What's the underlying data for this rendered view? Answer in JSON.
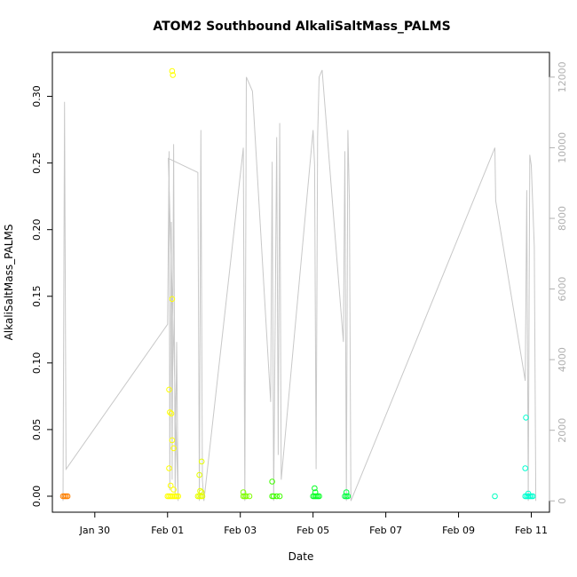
{
  "chart_data": {
    "type": "scatter",
    "title": "ATOM2 Southbound AlkaliSaltMass_PALMS",
    "xlabel": "Date",
    "ylabel": "AlkaliSaltMass_PALMS",
    "ylim": [
      -0.012,
      0.333
    ],
    "y_ticks": [
      0.0,
      0.05,
      0.1,
      0.15,
      0.2,
      0.25,
      0.3
    ],
    "y_tick_labels": [
      "0.00",
      "0.05",
      "0.10",
      "0.15",
      "0.20",
      "0.25",
      "0.30"
    ],
    "xlim": [
      "2017-01-28T20:00",
      "2017-02-11T12:00"
    ],
    "x_ticks": [
      "2017-01-30",
      "2017-02-01",
      "2017-02-03",
      "2017-02-05",
      "2017-02-07",
      "2017-02-09",
      "2017-02-11"
    ],
    "x_tick_labels": [
      "Jan 30",
      "Feb 01",
      "Feb 03",
      "Feb 05",
      "Feb 07",
      "Feb 09",
      "Feb 11"
    ],
    "y2lim": [
      -320,
      12700
    ],
    "y2_ticks": [
      0,
      2000,
      4000,
      6000,
      8000,
      10000,
      12000
    ],
    "y2_tick_labels": [
      "0",
      "2000",
      "4000",
      "6000",
      "8000",
      "10000",
      "12000"
    ],
    "altitude_color": "#c8c8c8",
    "right_axis_color": "#b0b0b0",
    "altitude_series": [
      [
        "2017-01-29T03:00",
        0
      ],
      [
        "2017-01-29T04:00",
        11300
      ],
      [
        "2017-01-29T05:00",
        900
      ],
      [
        "2017-02-01T00:00",
        5000
      ],
      [
        "2017-02-01T01:00",
        9900
      ],
      [
        "2017-02-01T01:30",
        300
      ],
      [
        "2017-02-01T02:30",
        7900
      ],
      [
        "2017-02-01T03:00",
        600
      ],
      [
        "2017-02-01T04:00",
        10100
      ],
      [
        "2017-02-01T05:00",
        200
      ],
      [
        "2017-02-01T06:00",
        4500
      ],
      [
        "2017-02-01T07:00",
        0
      ],
      [
        "2017-02-01T00:30",
        9700
      ],
      [
        "2017-02-01T20:00",
        9300
      ],
      [
        "2017-02-01T21:00",
        0
      ],
      [
        "2017-02-01T22:00",
        10500
      ],
      [
        "2017-02-01T23:00",
        600
      ],
      [
        "2017-02-02T00:00",
        0
      ],
      [
        "2017-02-03T02:00",
        10000
      ],
      [
        "2017-02-03T03:00",
        0
      ],
      [
        "2017-02-03T04:00",
        12000
      ],
      [
        "2017-02-03T06:00",
        11800
      ],
      [
        "2017-02-03T08:00",
        11600
      ],
      [
        "2017-02-03T20:00",
        2800
      ],
      [
        "2017-02-03T21:00",
        9600
      ],
      [
        "2017-02-03T22:00",
        0
      ],
      [
        "2017-02-04T00:00",
        10300
      ],
      [
        "2017-02-04T01:00",
        1300
      ],
      [
        "2017-02-04T02:00",
        10700
      ],
      [
        "2017-02-04T03:00",
        600
      ],
      [
        "2017-02-05T00:00",
        10500
      ],
      [
        "2017-02-05T01:00",
        9500
      ],
      [
        "2017-02-05T02:00",
        900
      ],
      [
        "2017-02-05T03:00",
        10300
      ],
      [
        "2017-02-05T04:00",
        12000
      ],
      [
        "2017-02-05T06:00",
        12200
      ],
      [
        "2017-02-05T20:00",
        4500
      ],
      [
        "2017-02-05T21:00",
        9900
      ],
      [
        "2017-02-05T22:00",
        0
      ],
      [
        "2017-02-05T23:00",
        10500
      ],
      [
        "2017-02-06T00:00",
        8500
      ],
      [
        "2017-02-06T01:00",
        0
      ],
      [
        "2017-02-10T00:00",
        10000
      ],
      [
        "2017-02-10T00:30",
        8500
      ],
      [
        "2017-02-10T20:00",
        3400
      ],
      [
        "2017-02-10T21:00",
        8800
      ],
      [
        "2017-02-10T22:00",
        0
      ],
      [
        "2017-02-10T23:00",
        9800
      ],
      [
        "2017-02-11T00:00",
        9500
      ],
      [
        "2017-02-11T02:00",
        7200
      ],
      [
        "2017-02-11T03:00",
        0
      ]
    ],
    "points": [
      {
        "x": "2017-01-29T03:00",
        "y": 0.0,
        "color": "#ff8000"
      },
      {
        "x": "2017-01-29T04:00",
        "y": 0.0,
        "color": "#ff8000"
      },
      {
        "x": "2017-01-29T05:00",
        "y": 0.0,
        "color": "#ff8000"
      },
      {
        "x": "2017-01-29T06:00",
        "y": 0.0,
        "color": "#ff8000"
      },
      {
        "x": "2017-02-01T00:00",
        "y": 0.0,
        "color": "#ffff00"
      },
      {
        "x": "2017-02-01T01:00",
        "y": 0.0,
        "color": "#ffff00"
      },
      {
        "x": "2017-02-01T02:00",
        "y": 0.0,
        "color": "#ffff00"
      },
      {
        "x": "2017-02-01T03:00",
        "y": 0.0,
        "color": "#ffff00"
      },
      {
        "x": "2017-02-01T04:00",
        "y": 0.0,
        "color": "#ffff00"
      },
      {
        "x": "2017-02-01T05:00",
        "y": 0.0,
        "color": "#ffff00"
      },
      {
        "x": "2017-02-01T06:00",
        "y": 0.0,
        "color": "#ffff00"
      },
      {
        "x": "2017-02-01T07:00",
        "y": 0.0,
        "color": "#ffff00"
      },
      {
        "x": "2017-02-01T01:30",
        "y": 0.063,
        "color": "#ffff00"
      },
      {
        "x": "2017-02-01T02:30",
        "y": 0.062,
        "color": "#ffff00"
      },
      {
        "x": "2017-02-01T01:00",
        "y": 0.08,
        "color": "#ffff00"
      },
      {
        "x": "2017-02-01T03:00",
        "y": 0.148,
        "color": "#ffff00"
      },
      {
        "x": "2017-02-01T03:00",
        "y": 0.319,
        "color": "#ffff00"
      },
      {
        "x": "2017-02-01T03:30",
        "y": 0.316,
        "color": "#ffff00"
      },
      {
        "x": "2017-02-01T03:00",
        "y": 0.042,
        "color": "#ffff00"
      },
      {
        "x": "2017-02-01T04:00",
        "y": 0.036,
        "color": "#ffff00"
      },
      {
        "x": "2017-02-01T01:00",
        "y": 0.021,
        "color": "#ffff00"
      },
      {
        "x": "2017-02-01T02:00",
        "y": 0.008,
        "color": "#ffff00"
      },
      {
        "x": "2017-02-01T04:00",
        "y": 0.005,
        "color": "#ffff00"
      },
      {
        "x": "2017-02-01T20:00",
        "y": 0.0,
        "color": "#e6ff00"
      },
      {
        "x": "2017-02-01T21:00",
        "y": 0.0,
        "color": "#e6ff00"
      },
      {
        "x": "2017-02-01T22:00",
        "y": 0.0,
        "color": "#e6ff00"
      },
      {
        "x": "2017-02-01T23:00",
        "y": 0.0,
        "color": "#e6ff00"
      },
      {
        "x": "2017-02-01T21:30",
        "y": 0.004,
        "color": "#e6ff00"
      },
      {
        "x": "2017-02-01T22:30",
        "y": 0.003,
        "color": "#e6ff00"
      },
      {
        "x": "2017-02-01T21:00",
        "y": 0.016,
        "color": "#e6ff00"
      },
      {
        "x": "2017-02-01T22:30",
        "y": 0.026,
        "color": "#e6ff00"
      },
      {
        "x": "2017-02-03T02:00",
        "y": 0.0,
        "color": "#80ff00"
      },
      {
        "x": "2017-02-03T03:00",
        "y": 0.0,
        "color": "#80ff00"
      },
      {
        "x": "2017-02-03T04:00",
        "y": 0.0,
        "color": "#80ff00"
      },
      {
        "x": "2017-02-03T06:00",
        "y": 0.0,
        "color": "#80ff00"
      },
      {
        "x": "2017-02-03T02:00",
        "y": 0.003,
        "color": "#80ff00"
      },
      {
        "x": "2017-02-03T21:00",
        "y": 0.0,
        "color": "#40ff00"
      },
      {
        "x": "2017-02-03T22:00",
        "y": 0.0,
        "color": "#40ff00"
      },
      {
        "x": "2017-02-04T00:00",
        "y": 0.0,
        "color": "#40ff00"
      },
      {
        "x": "2017-02-04T02:00",
        "y": 0.0,
        "color": "#40ff00"
      },
      {
        "x": "2017-02-03T21:00",
        "y": 0.011,
        "color": "#40ff00"
      },
      {
        "x": "2017-02-05T00:00",
        "y": 0.0,
        "color": "#00ff20"
      },
      {
        "x": "2017-02-05T01:00",
        "y": 0.0,
        "color": "#00ff20"
      },
      {
        "x": "2017-02-05T02:00",
        "y": 0.0,
        "color": "#00ff20"
      },
      {
        "x": "2017-02-05T03:00",
        "y": 0.0,
        "color": "#00ff20"
      },
      {
        "x": "2017-02-05T04:00",
        "y": 0.0,
        "color": "#00ff20"
      },
      {
        "x": "2017-02-05T01:00",
        "y": 0.006,
        "color": "#00ff20"
      },
      {
        "x": "2017-02-05T01:30",
        "y": 0.003,
        "color": "#00ff20"
      },
      {
        "x": "2017-02-05T21:00",
        "y": 0.0,
        "color": "#00ff40"
      },
      {
        "x": "2017-02-05T22:00",
        "y": 0.0,
        "color": "#00ff40"
      },
      {
        "x": "2017-02-05T23:00",
        "y": 0.0,
        "color": "#00ff40"
      },
      {
        "x": "2017-02-05T22:00",
        "y": 0.003,
        "color": "#00ff40"
      },
      {
        "x": "2017-02-10T00:00",
        "y": 0.0,
        "color": "#00ffc0"
      },
      {
        "x": "2017-02-10T20:00",
        "y": 0.0,
        "color": "#00ffd0"
      },
      {
        "x": "2017-02-10T21:00",
        "y": 0.0,
        "color": "#00ffd0"
      },
      {
        "x": "2017-02-10T22:00",
        "y": 0.0,
        "color": "#00ffd0"
      },
      {
        "x": "2017-02-10T23:00",
        "y": 0.0,
        "color": "#00ffd0"
      },
      {
        "x": "2017-02-11T00:00",
        "y": 0.0,
        "color": "#00ffd0"
      },
      {
        "x": "2017-02-11T01:00",
        "y": 0.0,
        "color": "#00ffd0"
      },
      {
        "x": "2017-02-10T22:00",
        "y": 0.002,
        "color": "#00ffd0"
      },
      {
        "x": "2017-02-10T20:00",
        "y": 0.021,
        "color": "#00ffd0"
      },
      {
        "x": "2017-02-10T20:30",
        "y": 0.059,
        "color": "#00ffd0"
      }
    ]
  }
}
